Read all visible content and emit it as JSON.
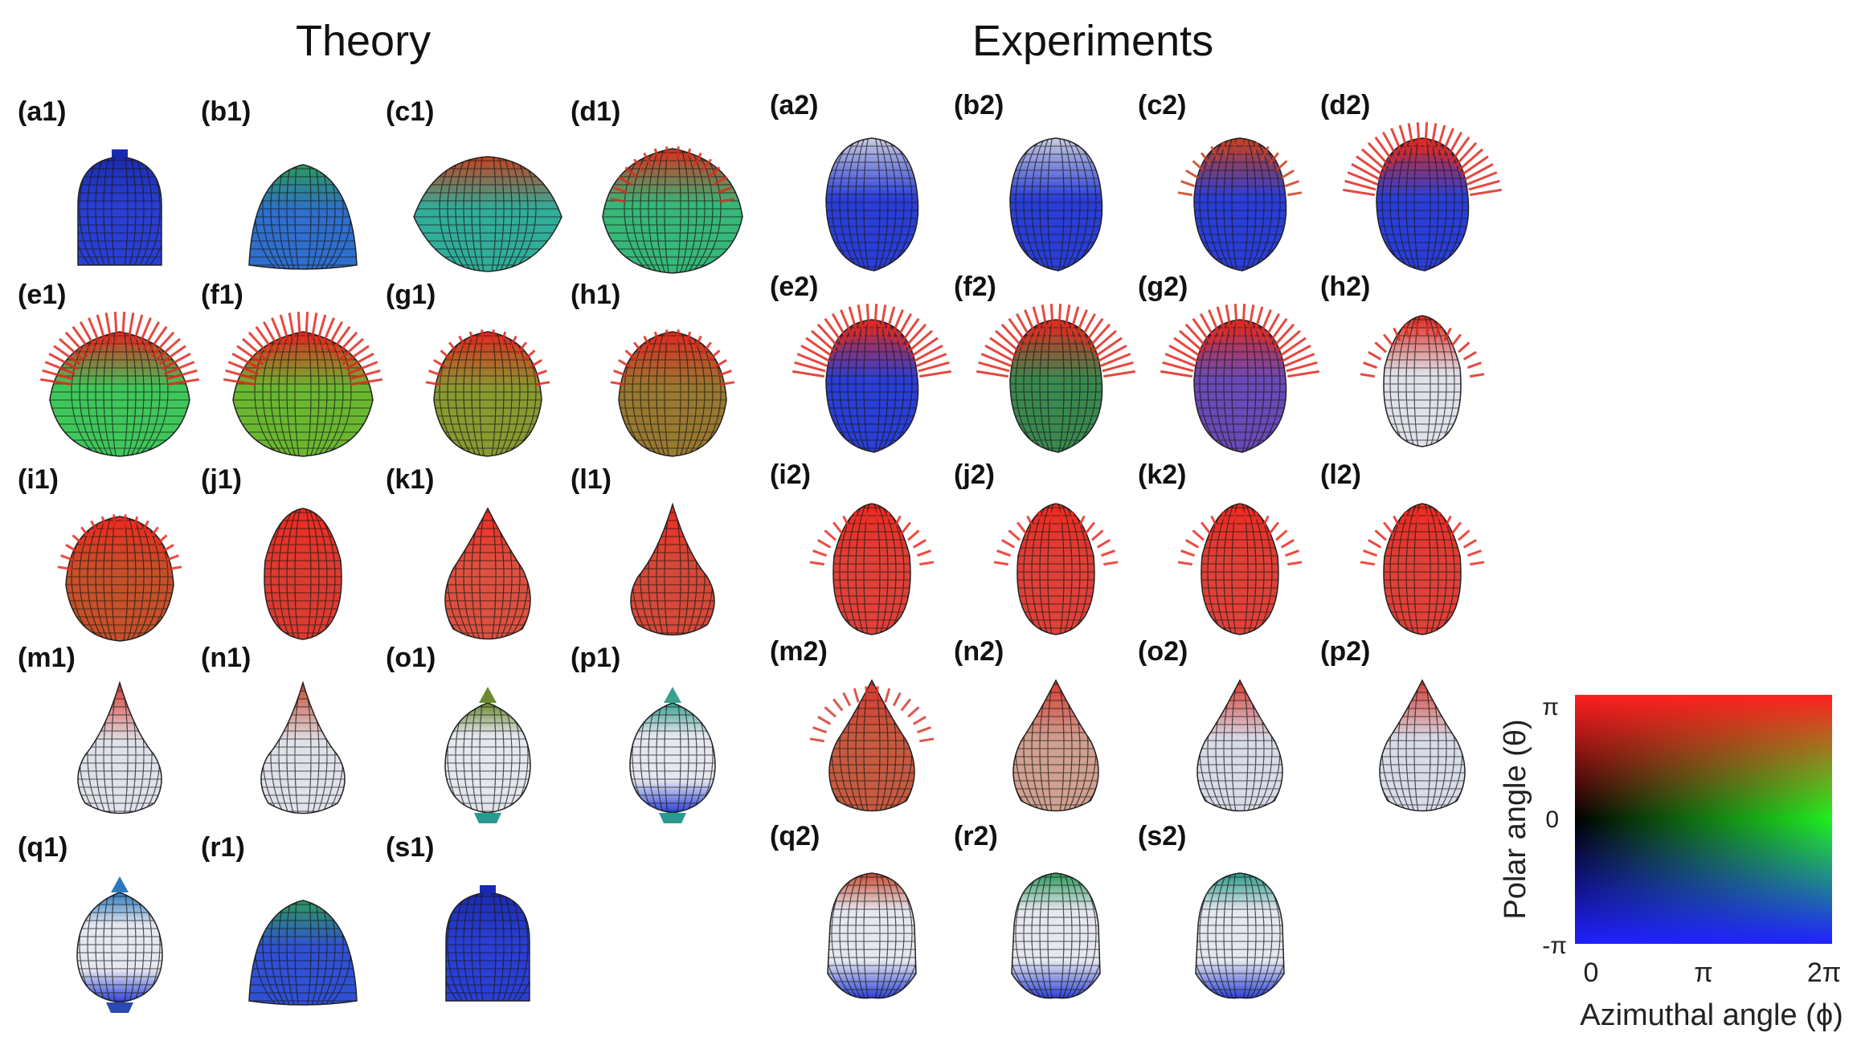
{
  "headings": {
    "theory": "Theory",
    "experiments": "Experiments"
  },
  "colors": {
    "red": "#ff2020",
    "green": "#20e020",
    "blue": "#2030e0",
    "sphere": "#e8eaf2",
    "grid": "#222222"
  },
  "theory_panels": [
    {
      "label": "(a1)",
      "shape": "cylinder",
      "color": "#2a3fd8",
      "tip": "#1a2ab0",
      "spikes": 0
    },
    {
      "label": "(b1)",
      "shape": "dome",
      "color": "#2e6fd0",
      "tip": "#2a9a5a",
      "spikes": 0
    },
    {
      "label": "(c1)",
      "shape": "wide",
      "color": "#2fae9a",
      "tip": "#c84020",
      "spikes": 0
    },
    {
      "label": "(d1)",
      "shape": "spiky",
      "color": "#35b878",
      "tip": "#d83020",
      "spikes": 1
    },
    {
      "label": "(e1)",
      "shape": "spiky",
      "color": "#3ec85a",
      "tip": "#e02a20",
      "spikes": 2
    },
    {
      "label": "(f1)",
      "shape": "spiky",
      "color": "#6ab830",
      "tip": "#e02a20",
      "spikes": 2
    },
    {
      "label": "(g1)",
      "shape": "round",
      "color": "#8a9a30",
      "tip": "#e02a20",
      "spikes": 1
    },
    {
      "label": "(h1)",
      "shape": "round",
      "color": "#9a7a30",
      "tip": "#e02a20",
      "spikes": 1
    },
    {
      "label": "(i1)",
      "shape": "round",
      "color": "#c85028",
      "tip": "#ee2a20",
      "spikes": 1
    },
    {
      "label": "(j1)",
      "shape": "egg",
      "color": "#e03a30",
      "tip": "#ee2a20",
      "spikes": 0
    },
    {
      "label": "(k1)",
      "shape": "drop",
      "color": "#e05040",
      "tip": "#ee2a20",
      "spikes": 0
    },
    {
      "label": "(l1)",
      "shape": "cone",
      "color": "#d84838",
      "tip": "#ee2a20",
      "spikes": 0
    },
    {
      "label": "(m1)",
      "shape": "cone",
      "color": "#e0e2ea",
      "tip": "#d83a30",
      "spikes": 0
    },
    {
      "label": "(n1)",
      "shape": "cone",
      "color": "#e0e2ea",
      "tip": "#c84a30",
      "spikes": 0
    },
    {
      "label": "(o1)",
      "shape": "bulb",
      "color": "#e0e2ea",
      "tip": "#6a8a30",
      "spikes": 0
    },
    {
      "label": "(p1)",
      "shape": "bulb",
      "color": "#d8dce8",
      "tip": "#3aa090",
      "spikes": 0
    },
    {
      "label": "(q1)",
      "shape": "bulbblue",
      "color": "#d8dce8",
      "tip": "#2a7ac0",
      "spikes": 0
    },
    {
      "label": "(r1)",
      "shape": "dome",
      "color": "#3050d8",
      "tip": "#2a9a5a",
      "spikes": 0
    },
    {
      "label": "(s1)",
      "shape": "cylinder",
      "color": "#2a3fd8",
      "tip": "#1a2ab0",
      "spikes": 0
    }
  ],
  "experiment_panels": [
    {
      "label": "(a2)",
      "shape": "blob",
      "color": "#2a3fd8",
      "tip": "#c8cce0",
      "spikes": 0
    },
    {
      "label": "(b2)",
      "shape": "blob",
      "color": "#2a3fd8",
      "tip": "#c8cce0",
      "spikes": 0
    },
    {
      "label": "(c2)",
      "shape": "blob",
      "color": "#2a3fd8",
      "tip": "#c84020",
      "spikes": 1
    },
    {
      "label": "(d2)",
      "shape": "blob",
      "color": "#2a3fd8",
      "tip": "#e02a20",
      "spikes": 2
    },
    {
      "label": "(e2)",
      "shape": "blob",
      "color": "#2a3fd8",
      "tip": "#e02a20",
      "spikes": 2
    },
    {
      "label": "(f2)",
      "shape": "blob",
      "color": "#3a8a50",
      "tip": "#e02a20",
      "spikes": 2
    },
    {
      "label": "(g2)",
      "shape": "blob",
      "color": "#6a4ab8",
      "tip": "#e02a20",
      "spikes": 2
    },
    {
      "label": "(h2)",
      "shape": "egg",
      "color": "#e0e2ea",
      "tip": "#e02a20",
      "spikes": 1
    },
    {
      "label": "(i2)",
      "shape": "egg",
      "color": "#e04038",
      "tip": "#ee2a20",
      "spikes": 1
    },
    {
      "label": "(j2)",
      "shape": "egg",
      "color": "#e04038",
      "tip": "#ee2a20",
      "spikes": 1
    },
    {
      "label": "(k2)",
      "shape": "egg",
      "color": "#e04038",
      "tip": "#ee2a20",
      "spikes": 1
    },
    {
      "label": "(l2)",
      "shape": "egg",
      "color": "#e04038",
      "tip": "#ee2a20",
      "spikes": 1
    },
    {
      "label": "(m2)",
      "shape": "drop",
      "color": "#c85a40",
      "tip": "#d83a30",
      "spikes": 1
    },
    {
      "label": "(n2)",
      "shape": "drop",
      "color": "#d0a090",
      "tip": "#d83a30",
      "spikes": 0
    },
    {
      "label": "(o2)",
      "shape": "drop",
      "color": "#d8dce8",
      "tip": "#d83a30",
      "spikes": 0
    },
    {
      "label": "(p2)",
      "shape": "drop",
      "color": "#d8dce8",
      "tip": "#d83a30",
      "spikes": 0
    },
    {
      "label": "(q2)",
      "shape": "blobblue",
      "color": "#d8dce8",
      "tip": "#c84a30",
      "spikes": 0
    },
    {
      "label": "(r2)",
      "shape": "blobblue",
      "color": "#d8dce8",
      "tip": "#2a9a5a",
      "spikes": 0
    },
    {
      "label": "(s2)",
      "shape": "blobblue",
      "color": "#d8dce8",
      "tip": "#2a9a8a",
      "spikes": 0
    }
  ],
  "legend": {
    "ylabel": "Polar angle (θ)",
    "xlabel": "Azimuthal angle (ϕ)",
    "y_ticks": [
      "π",
      "0",
      "-π"
    ],
    "x_ticks": [
      "0",
      "π",
      "2π"
    ],
    "corner_colors": {
      "top_left": "#ff2020",
      "top_right": "#ff2020",
      "middle_left": "#000000",
      "middle_right": "#20f020",
      "bottom_left": "#2020ff",
      "bottom_right": "#2020ff"
    }
  }
}
